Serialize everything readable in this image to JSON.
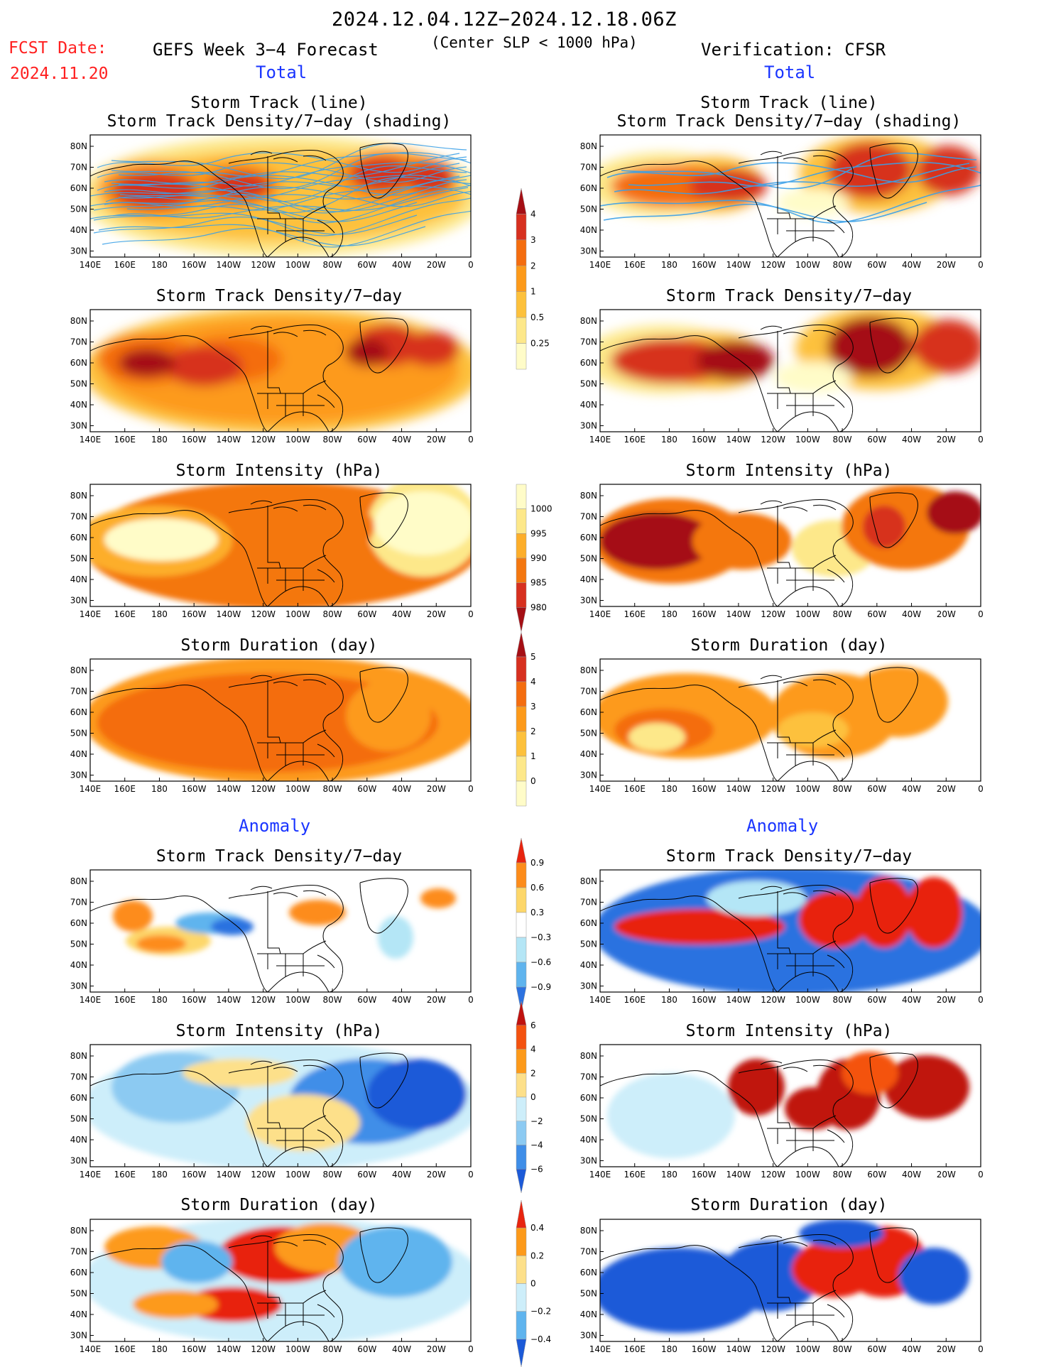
{
  "header": {
    "date_range": "2024.12.04.12Z−2024.12.18.06Z",
    "fcst_label": "FCST Date:",
    "fcst_date": "2024.11.20",
    "forecast_title": "GEFS Week 3−4 Forecast",
    "criteria": "(Center SLP < 1000 hPa)",
    "verification": "Verification: CFSR"
  },
  "sections": {
    "total": "Total",
    "anomaly": "Anomaly"
  },
  "panel_titles": {
    "track_line": "Storm Track (line)",
    "track_shading": "Storm Track Density/7−day (shading)",
    "density": "Storm Track Density/7−day",
    "intensity": "Storm Intensity (hPa)",
    "duration": "Storm Duration (day)"
  },
  "axes": {
    "lon_ticks": [
      "140E",
      "160E",
      "180",
      "160W",
      "140W",
      "120W",
      "100W",
      "80W",
      "60W",
      "40W",
      "20W",
      "0"
    ],
    "lat_ticks": [
      "80N",
      "70N",
      "60N",
      "50N",
      "40N",
      "30N"
    ]
  },
  "colorbars": {
    "density": {
      "labels": [
        "4",
        "3",
        "2",
        "1",
        "0.5",
        "0.25"
      ],
      "colors": [
        "#a50f15",
        "#d7301f",
        "#f46d0f",
        "#fd9a1a",
        "#fdc13c",
        "#fde88a",
        "#fffcc8"
      ]
    },
    "intensity": {
      "labels": [
        "1000",
        "995",
        "990",
        "985",
        "980"
      ],
      "colors": [
        "#fffcc8",
        "#fde88a",
        "#fdae2a",
        "#f4770f",
        "#d7301f",
        "#a50f15"
      ]
    },
    "duration": {
      "labels": [
        "5",
        "4",
        "3",
        "2",
        "1",
        "0"
      ],
      "colors": [
        "#a50f15",
        "#d7301f",
        "#f46d0f",
        "#fd9a1a",
        "#fdc13c",
        "#fde88a",
        "#fffcc8"
      ]
    },
    "density_anom": {
      "labels": [
        "0.9",
        "0.6",
        "0.3",
        "−0.3",
        "−0.6",
        "−0.9"
      ],
      "colors": [
        "#e8240f",
        "#fd8c1a",
        "#fdd76a",
        "#ffffff",
        "#b4e6f6",
        "#5fb4ee",
        "#2c72e0"
      ]
    },
    "intensity_anom": {
      "labels": [
        "6",
        "4",
        "2",
        "0",
        "−2",
        "−4",
        "−6"
      ],
      "colors": [
        "#c0120f",
        "#f4520f",
        "#fd9a1a",
        "#fde08a",
        "#cdeefa",
        "#8ccaf2",
        "#3f8ee8",
        "#1c5ad8"
      ]
    },
    "duration_anom": {
      "labels": [
        "0.4",
        "0.2",
        "0",
        "−0.2",
        "−0.4"
      ],
      "colors": [
        "#e8240f",
        "#fd9a1a",
        "#fde08a",
        "#cdeefa",
        "#5fb4ee",
        "#1c5ad8"
      ]
    }
  }
}
